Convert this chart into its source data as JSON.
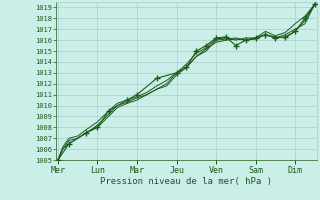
{
  "xlabel": "Pression niveau de la mer( hPa )",
  "bg_color": "#cceee8",
  "grid_color": "#aacccc",
  "line_color": "#1a5c1a",
  "ylim": [
    1005,
    1019.5
  ],
  "yticks": [
    1005,
    1006,
    1007,
    1008,
    1009,
    1010,
    1011,
    1012,
    1013,
    1014,
    1015,
    1016,
    1017,
    1018,
    1019
  ],
  "day_labels": [
    "Mer",
    "Lun",
    "Mar",
    "Jeu",
    "Ven",
    "Sam",
    "Dim"
  ],
  "day_positions": [
    0,
    1,
    2,
    3,
    4,
    5,
    6
  ],
  "xlim": [
    -0.05,
    6.55
  ],
  "line1_x": [
    0.0,
    0.12,
    0.28,
    0.5,
    0.72,
    1.0,
    1.28,
    1.5,
    1.75,
    2.0,
    2.25,
    2.5,
    2.75,
    3.0,
    3.25,
    3.5,
    3.75,
    4.0,
    4.25,
    4.5,
    4.75,
    5.0,
    5.25,
    5.5,
    5.75,
    6.0,
    6.25,
    6.5
  ],
  "line1_y": [
    1005.0,
    1006.0,
    1006.5,
    1007.0,
    1007.5,
    1008.0,
    1009.0,
    1009.8,
    1010.2,
    1010.5,
    1011.0,
    1011.5,
    1012.0,
    1013.0,
    1013.5,
    1014.5,
    1015.0,
    1016.0,
    1016.1,
    1016.2,
    1016.0,
    1016.2,
    1016.5,
    1016.2,
    1016.5,
    1017.0,
    1017.5,
    1019.3
  ],
  "line2_x": [
    0.0,
    0.12,
    0.28,
    0.5,
    0.72,
    1.0,
    1.28,
    1.5,
    1.75,
    2.0,
    2.25,
    2.5,
    2.75,
    3.0,
    3.25,
    3.5,
    3.75,
    4.0,
    4.25,
    4.5,
    4.75,
    5.0,
    5.25,
    5.5,
    5.75,
    6.0,
    6.25,
    6.5
  ],
  "line2_y": [
    1005.0,
    1006.2,
    1007.0,
    1007.2,
    1007.8,
    1008.5,
    1009.5,
    1010.2,
    1010.5,
    1010.8,
    1011.2,
    1011.8,
    1012.3,
    1013.0,
    1013.8,
    1014.8,
    1015.3,
    1016.1,
    1016.2,
    1016.0,
    1016.2,
    1016.2,
    1016.8,
    1016.4,
    1016.7,
    1017.5,
    1018.2,
    1019.3
  ],
  "line3_x": [
    0.0,
    0.12,
    0.28,
    0.5,
    0.72,
    1.0,
    1.28,
    1.5,
    1.75,
    2.0,
    2.25,
    2.5,
    2.75,
    3.0,
    3.25,
    3.5,
    3.75,
    4.0,
    4.25,
    4.5,
    4.75,
    5.0,
    5.25,
    5.5,
    5.75,
    6.0,
    6.25,
    6.5
  ],
  "line3_y": [
    1005.0,
    1006.0,
    1006.8,
    1007.0,
    1007.5,
    1008.2,
    1009.2,
    1010.0,
    1010.3,
    1010.7,
    1011.0,
    1011.5,
    1011.8,
    1012.8,
    1013.5,
    1014.5,
    1015.2,
    1015.8,
    1016.0,
    1016.1,
    1016.0,
    1016.1,
    1016.5,
    1016.3,
    1016.2,
    1016.8,
    1017.8,
    1019.3
  ],
  "marker_x": [
    0.0,
    0.28,
    0.72,
    1.0,
    1.28,
    1.75,
    2.0,
    2.5,
    3.0,
    3.25,
    3.5,
    3.75,
    4.0,
    4.25,
    4.5,
    4.75,
    5.0,
    5.25,
    5.5,
    5.75,
    6.0,
    6.25,
    6.5
  ],
  "marker_y": [
    1005.0,
    1006.5,
    1007.5,
    1008.0,
    1009.5,
    1010.5,
    1011.0,
    1012.5,
    1013.0,
    1013.5,
    1015.0,
    1015.5,
    1016.2,
    1016.3,
    1015.5,
    1016.0,
    1016.2,
    1016.5,
    1016.2,
    1016.3,
    1016.8,
    1018.0,
    1019.3
  ]
}
